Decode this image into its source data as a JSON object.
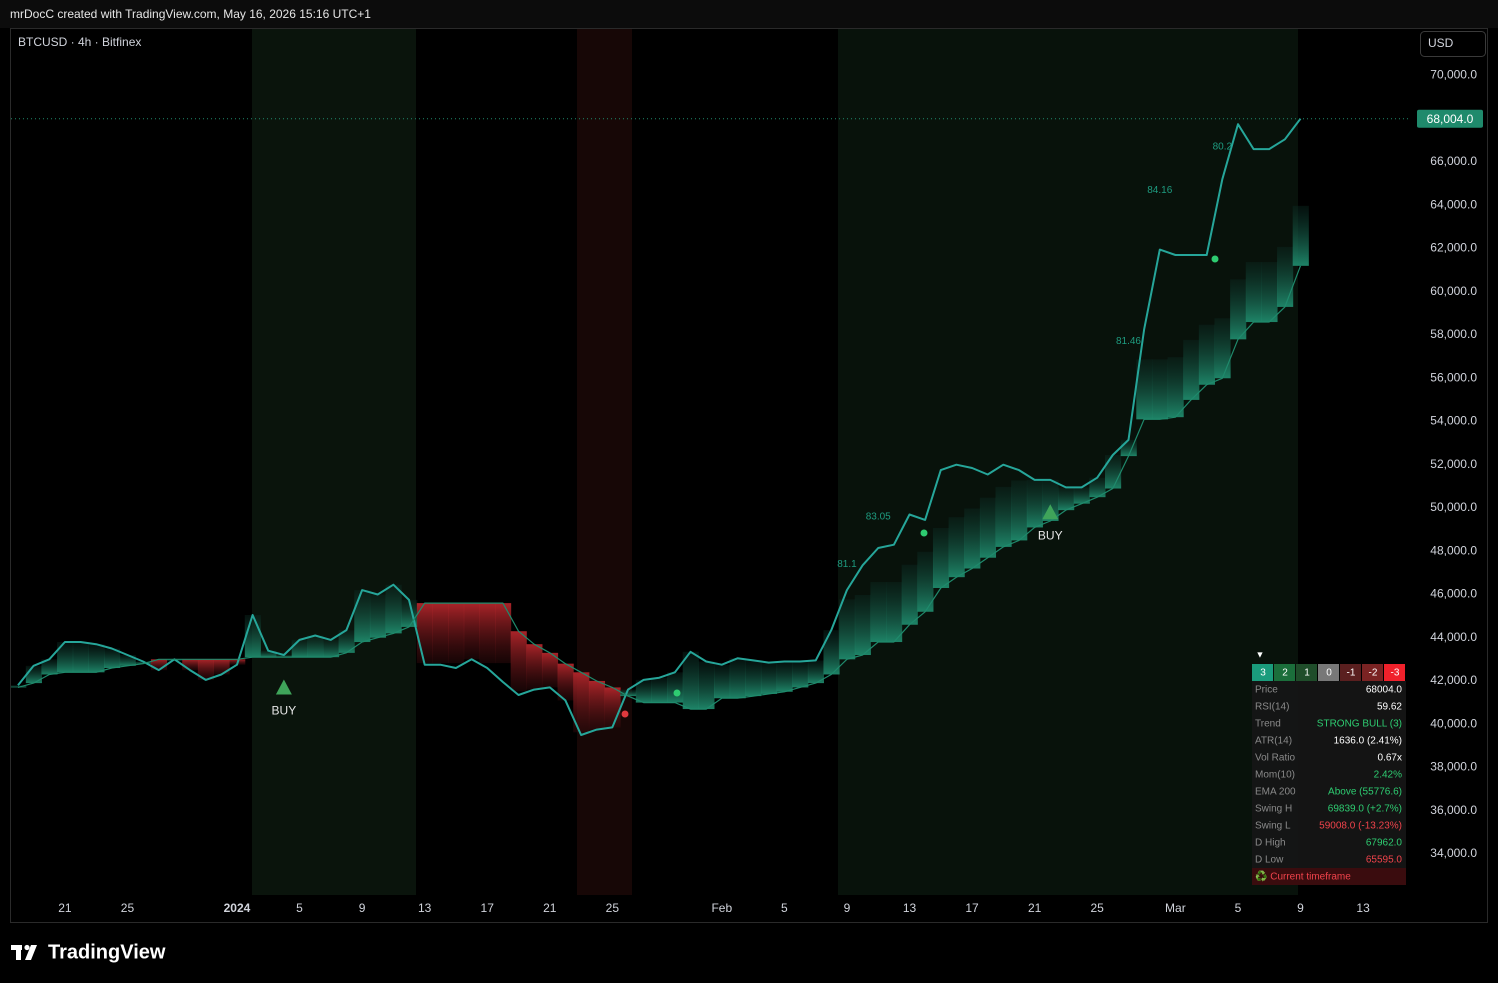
{
  "header": "mrDocC created with TradingView.com, May 16, 2026 15:16 UTC+1",
  "symbol": "BTCUSD · 4h · Bitfinex",
  "currency": "USD",
  "logo": "TradingView",
  "chart_data": {
    "type": "line",
    "x": [
      "2023-12-18",
      "2023-12-19",
      "2023-12-20",
      "2023-12-21",
      "2023-12-22",
      "2023-12-23",
      "2023-12-24",
      "2023-12-25",
      "2023-12-26",
      "2023-12-27",
      "2023-12-28",
      "2023-12-29",
      "2023-12-30",
      "2023-12-31",
      "2024-01-01",
      "2024-01-02",
      "2024-01-03",
      "2024-01-04",
      "2024-01-05",
      "2024-01-06",
      "2024-01-07",
      "2024-01-08",
      "2024-01-09",
      "2024-01-10",
      "2024-01-11",
      "2024-01-12",
      "2024-01-13",
      "2024-01-14",
      "2024-01-15",
      "2024-01-16",
      "2024-01-17",
      "2024-01-18",
      "2024-01-19",
      "2024-01-20",
      "2024-01-21",
      "2024-01-22",
      "2024-01-23",
      "2024-01-24",
      "2024-01-25",
      "2024-01-26",
      "2024-01-27",
      "2024-01-28",
      "2024-01-29",
      "2024-01-30",
      "2024-01-31",
      "2024-02-01",
      "2024-02-02",
      "2024-02-03",
      "2024-02-04",
      "2024-02-05",
      "2024-02-06",
      "2024-02-07",
      "2024-02-08",
      "2024-02-09",
      "2024-02-10",
      "2024-02-11",
      "2024-02-12",
      "2024-02-13",
      "2024-02-14",
      "2024-02-15",
      "2024-02-16",
      "2024-02-17",
      "2024-02-18",
      "2024-02-19",
      "2024-02-20",
      "2024-02-21",
      "2024-02-22",
      "2024-02-23",
      "2024-02-24",
      "2024-02-25",
      "2024-02-26",
      "2024-02-27",
      "2024-02-28",
      "2024-02-29",
      "2024-03-01",
      "2024-03-02",
      "2024-03-03",
      "2024-03-04",
      "2024-03-05",
      "2024-03-06",
      "2024-03-07",
      "2024-03-08",
      "2024-03-09"
    ],
    "series": [
      {
        "color": "#26a69a",
        "values": [
          41800,
          42700,
          43000,
          43800,
          43800,
          43700,
          43500,
          43200,
          42900,
          42500,
          43000,
          42500,
          42050,
          42300,
          42750,
          45050,
          43400,
          43200,
          43900,
          44100,
          43900,
          44350,
          46200,
          46000,
          46450,
          45750,
          42750,
          42750,
          42600,
          43000,
          42600,
          41950,
          41350,
          41600,
          41700,
          41100,
          39500,
          39750,
          39850,
          41600,
          42050,
          42150,
          42400,
          43350,
          42900,
          42750,
          43050,
          42950,
          42850,
          42900,
          42900,
          42950,
          44350,
          46200,
          47350,
          48150,
          48300,
          49700,
          49450,
          51750,
          52000,
          51850,
          51550,
          52000,
          51750,
          51300,
          51300,
          50950,
          50950,
          51400,
          52450,
          53150,
          58250,
          61950,
          61700,
          61700,
          61700,
          65200,
          67750,
          66600,
          66600,
          67050,
          68004
        ]
      },
      {
        "color": "#1f8a6c",
        "down_color": "#b3262b",
        "values": [
          41700,
          41900,
          42300,
          42400,
          42400,
          42400,
          42600,
          42700,
          42800,
          43000,
          43000,
          43000,
          43000,
          43000,
          43000,
          43100,
          43100,
          43100,
          43100,
          43100,
          43100,
          43300,
          43800,
          44000,
          44200,
          44500,
          45600,
          45600,
          45600,
          45600,
          45600,
          45600,
          44300,
          43700,
          43300,
          42800,
          42400,
          42000,
          41700,
          41300,
          41000,
          41000,
          41000,
          40700,
          40700,
          41200,
          41200,
          41300,
          41400,
          41500,
          41700,
          41900,
          42300,
          43000,
          43200,
          43800,
          43800,
          44600,
          45200,
          46300,
          46800,
          47200,
          47700,
          48200,
          48500,
          49100,
          49400,
          49900,
          50200,
          50500,
          50900,
          52400,
          54100,
          54100,
          54200,
          55000,
          55700,
          56000,
          57800,
          58600,
          58600,
          59300,
          61200
        ]
      }
    ],
    "xlim": [
      "2023-12-18",
      "2024-03-16"
    ],
    "xticks": [
      {
        "value": "2023-12-21",
        "label": "21"
      },
      {
        "value": "2023-12-25",
        "label": "25"
      },
      {
        "value": "2024-01-01",
        "label": "2024"
      },
      {
        "value": "2024-01-05",
        "label": "5"
      },
      {
        "value": "2024-01-09",
        "label": "9"
      },
      {
        "value": "2024-01-13",
        "label": "13"
      },
      {
        "value": "2024-01-17",
        "label": "17"
      },
      {
        "value": "2024-01-21",
        "label": "21"
      },
      {
        "value": "2024-01-25",
        "label": "25"
      },
      {
        "value": "2024-02-01",
        "label": "Feb"
      },
      {
        "value": "2024-02-05",
        "label": "5"
      },
      {
        "value": "2024-02-09",
        "label": "9"
      },
      {
        "value": "2024-02-13",
        "label": "13"
      },
      {
        "value": "2024-02-17",
        "label": "17"
      },
      {
        "value": "2024-02-21",
        "label": "21"
      },
      {
        "value": "2024-02-25",
        "label": "25"
      },
      {
        "value": "2024-03-01",
        "label": "Mar"
      },
      {
        "value": "2024-03-05",
        "label": "5"
      },
      {
        "value": "2024-03-09",
        "label": "9"
      },
      {
        "value": "2024-03-13",
        "label": "13"
      }
    ],
    "ylim": [
      32100,
      72200
    ],
    "yticks": [
      {
        "value": 34000,
        "label": "34,000.0"
      },
      {
        "value": 36000,
        "label": "36,000.0"
      },
      {
        "value": 38000,
        "label": "38,000.0"
      },
      {
        "value": 40000,
        "label": "40,000.0"
      },
      {
        "value": 42000,
        "label": "42,000.0"
      },
      {
        "value": 44000,
        "label": "44,000.0"
      },
      {
        "value": 46000,
        "label": "46,000.0"
      },
      {
        "value": 48000,
        "label": "48,000.0"
      },
      {
        "value": 50000,
        "label": "50,000.0"
      },
      {
        "value": 52000,
        "label": "52,000.0"
      },
      {
        "value": 54000,
        "label": "54,000.0"
      },
      {
        "value": 56000,
        "label": "56,000.0"
      },
      {
        "value": 58000,
        "label": "58,000.0"
      },
      {
        "value": 60000,
        "label": "60,000.0"
      },
      {
        "value": 62000,
        "label": "62,000.0"
      },
      {
        "value": 64000,
        "label": "64,000.0"
      },
      {
        "value": 66000,
        "label": "66,000.0"
      },
      {
        "value": 68000,
        "label": "68,000.0"
      },
      {
        "value": 70000,
        "label": "70,000.0"
      }
    ],
    "grid": false,
    "last_price": {
      "value": 68004,
      "label": "68,004.0",
      "color": "#1f8a6c"
    },
    "buy_signals": [
      {
        "text": "BUY",
        "x": "2024-01-04",
        "y": 41700,
        "color": "#3fa45a"
      },
      {
        "text": "BUY",
        "x": "2024-02-22",
        "y": 49800,
        "color": "#3fa45a"
      }
    ],
    "score_labels": [
      {
        "text": "81.1",
        "x": "2024-02-09",
        "y": 47400
      },
      {
        "text": "83.05",
        "x": "2024-02-11",
        "y": 49600
      },
      {
        "text": "81.46",
        "x": "2024-02-27",
        "y": 57700
      },
      {
        "text": "84.16",
        "x": "2024-02-29",
        "y": 64700
      },
      {
        "text": "80.2",
        "x": "2024-03-04",
        "y": 66700
      }
    ],
    "score_color": "#1e9c80"
  },
  "info_table": {
    "collapse_icon": "▼",
    "levels": [
      {
        "label": "3",
        "color": "#1a9c7c"
      },
      {
        "label": "2",
        "color": "#1b6e3b"
      },
      {
        "label": "1",
        "color": "#1f4d2a"
      },
      {
        "label": "0",
        "color": "#787878"
      },
      {
        "label": "-1",
        "color": "#5a1f1f"
      },
      {
        "label": "-2",
        "color": "#7a2323"
      },
      {
        "label": "-3",
        "color": "#f0212b"
      }
    ],
    "rows": [
      {
        "label": "Price",
        "value": "68004.0",
        "color": "#ffffff"
      },
      {
        "label": "RSI(14)",
        "value": "59.62",
        "color": "#ffffff"
      },
      {
        "label": "Trend",
        "value": "STRONG BULL (3)",
        "color": "#2ecc71"
      },
      {
        "label": "ATR(14)",
        "value": "1636.0 (2.41%)",
        "color": "#ffffff"
      },
      {
        "label": "Vol Ratio",
        "value": "0.67x",
        "color": "#ffffff"
      },
      {
        "label": "Mom(10)",
        "value": "2.42%",
        "color": "#2ecc71"
      },
      {
        "label": "EMA 200",
        "value": "Above (55776.6)",
        "color": "#2ecc71"
      },
      {
        "label": "Swing H",
        "value": "69839.0 (+2.7%)",
        "color": "#2ecc71"
      },
      {
        "label": "Swing L",
        "value": "59008.0 (-13.23%)",
        "color": "#f0434b"
      },
      {
        "label": "D High",
        "value": "67962.0",
        "color": "#2ecc71"
      },
      {
        "label": "D Low",
        "value": "65595.0",
        "color": "#f0434b"
      }
    ],
    "footer": "♻️ Current timeframe"
  }
}
